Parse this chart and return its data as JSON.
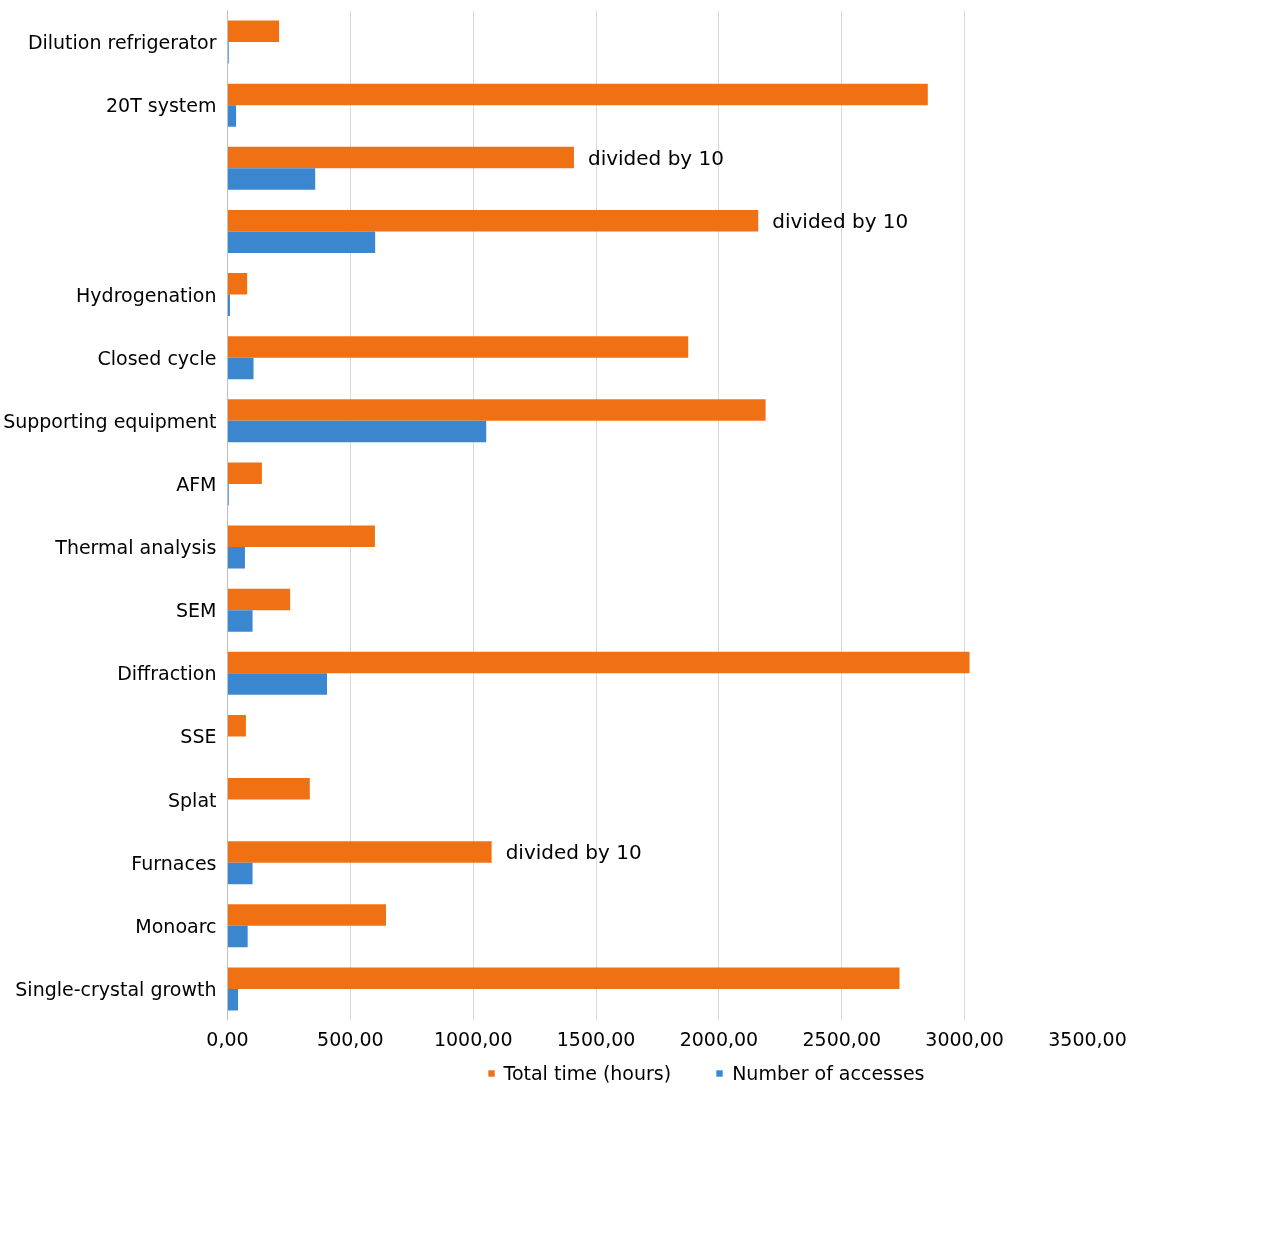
{
  "chart_data": {
    "type": "bar",
    "orientation": "horizontal",
    "categories": [
      "Dilution refrigerator",
      "20T system",
      null,
      null,
      "Hydrogenation",
      "Closed cycle",
      "Supporting equipment",
      "AFM",
      "Thermal analysis",
      "SEM",
      "Diffraction",
      "SSE",
      "Splat",
      "Furnaces",
      "Monoarc",
      "Single-crystal growth"
    ],
    "series": [
      {
        "name": "Total time (hours)",
        "color": "#f07113",
        "values": [
          210,
          2850,
          1410,
          2160,
          80,
          1875,
          2190,
          140,
          600,
          255,
          3020,
          75,
          335,
          1075,
          645,
          2735
        ]
      },
      {
        "name": "Number of accesses",
        "color": "#3a87d0",
        "values": [
          5,
          35,
          357,
          601,
          10,
          106,
          1053,
          5,
          71,
          102,
          405,
          0,
          null,
          102,
          82,
          43
        ]
      }
    ],
    "xlim": [
      0,
      3500
    ],
    "xticks": [
      {
        "value": 0,
        "label": "0,00"
      },
      {
        "value": 500,
        "label": "500,00"
      },
      {
        "value": 1000,
        "label": "1000,00"
      },
      {
        "value": 1500,
        "label": "1500,00"
      },
      {
        "value": 2000,
        "label": "2000,00"
      },
      {
        "value": 2500,
        "label": "2500,00"
      },
      {
        "value": 3000,
        "label": "3000,00"
      },
      {
        "value": 3500,
        "label": "3500,00"
      }
    ],
    "grid": "x",
    "legend": "bottom",
    "annotations": [
      "divided by 10",
      "divided by 10",
      {
        "text": "divided by 10",
        "x": 1075,
        "y": "Furnaces"
      }
    ]
  }
}
